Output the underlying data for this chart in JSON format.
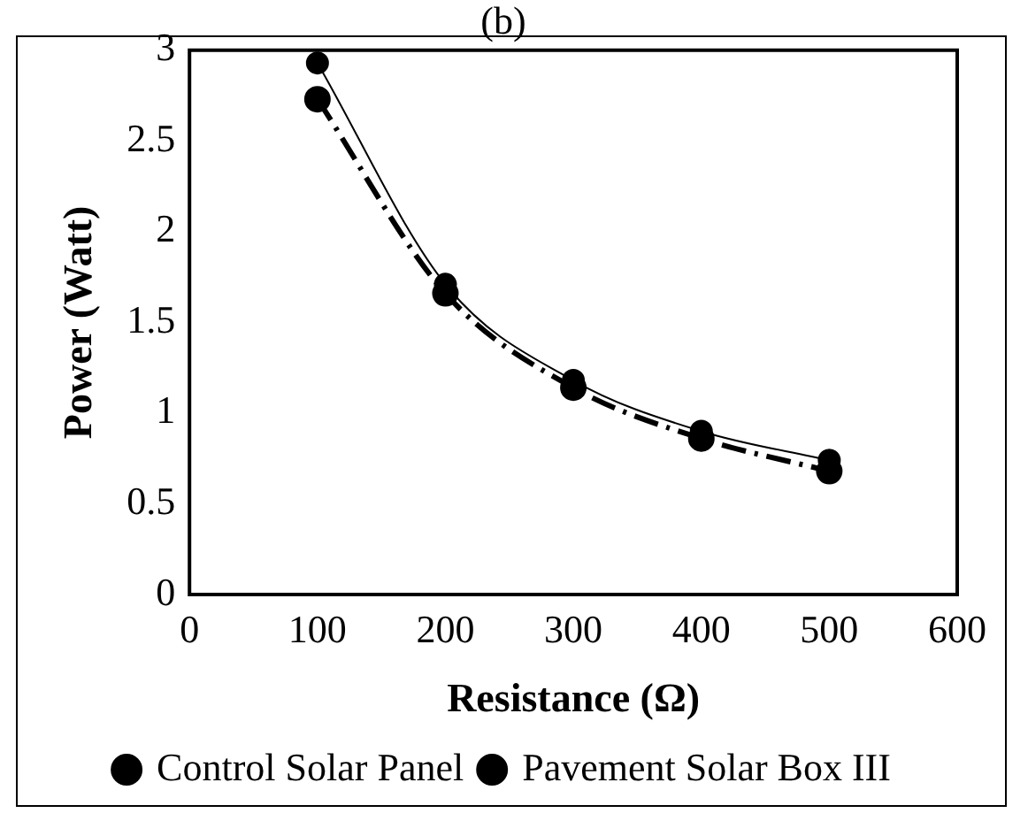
{
  "chart_data": {
    "type": "line",
    "title": "(b)",
    "xlabel": "Resistance (Ω)",
    "ylabel": "Power (Watt)",
    "x": [
      100,
      200,
      300,
      400,
      500
    ],
    "series": [
      {
        "name": "Control Solar Panel",
        "color": "#000000",
        "values": [
          2.93,
          1.71,
          1.18,
          0.9,
          0.74
        ],
        "line_style": "solid"
      },
      {
        "name": "Pavement Solar Box III",
        "color": "#000000",
        "values": [
          2.73,
          1.66,
          1.14,
          0.86,
          0.68
        ],
        "line_style": "dashed"
      }
    ],
    "xlim": [
      0,
      600
    ],
    "xticks": [
      0,
      100,
      200,
      300,
      400,
      500,
      600
    ],
    "ylim": [
      0,
      3
    ],
    "yticks": [
      0,
      0.5,
      1,
      1.5,
      2,
      2.5,
      3
    ],
    "grid": false,
    "legend": "bottom",
    "marker": "circle"
  }
}
